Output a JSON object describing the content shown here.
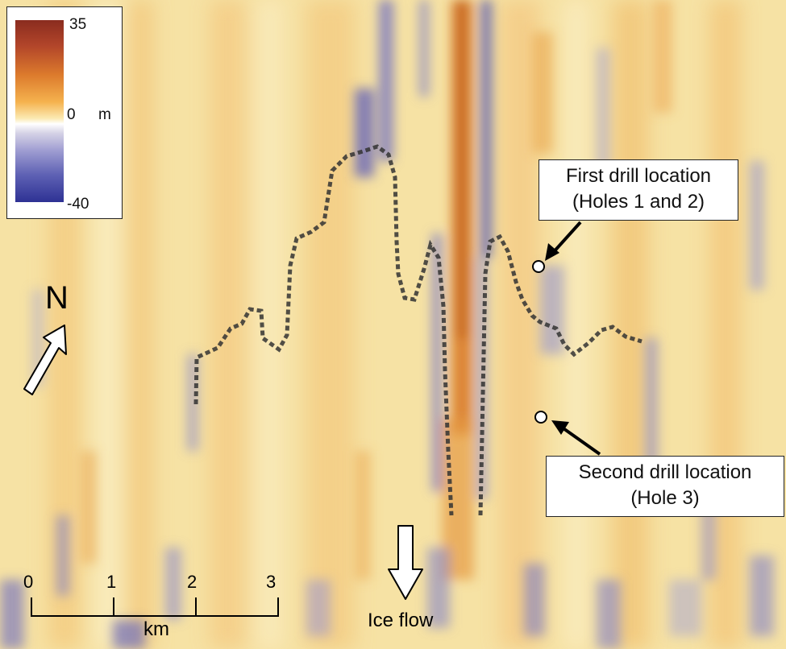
{
  "legend": {
    "max_label": "35",
    "zero_label": "0",
    "min_label": "-40",
    "unit": "m",
    "colors": {
      "high": "#8a2c1f",
      "mid_high": "#f5b24e",
      "neutral": "#fbeab2",
      "mid_low": "#9d9bd1",
      "low": "#2e3294"
    }
  },
  "callouts": {
    "first": {
      "line1": "First drill location",
      "line2": "(Holes 1 and 2)"
    },
    "second": {
      "line1": "Second drill location",
      "line2": "(Hole 3)"
    }
  },
  "north": {
    "label": "N",
    "icon": "north-arrow-icon"
  },
  "scale_bar": {
    "ticks": [
      "0",
      "1",
      "2",
      "3"
    ],
    "unit": "km",
    "icon": "scale-bar"
  },
  "ice_flow": {
    "label": "Ice flow",
    "icon": "down-arrow-icon"
  },
  "markers": [
    {
      "name": "first-drill-location",
      "icon": "circle-marker"
    },
    {
      "name": "second-drill-location",
      "icon": "circle-marker"
    }
  ]
}
